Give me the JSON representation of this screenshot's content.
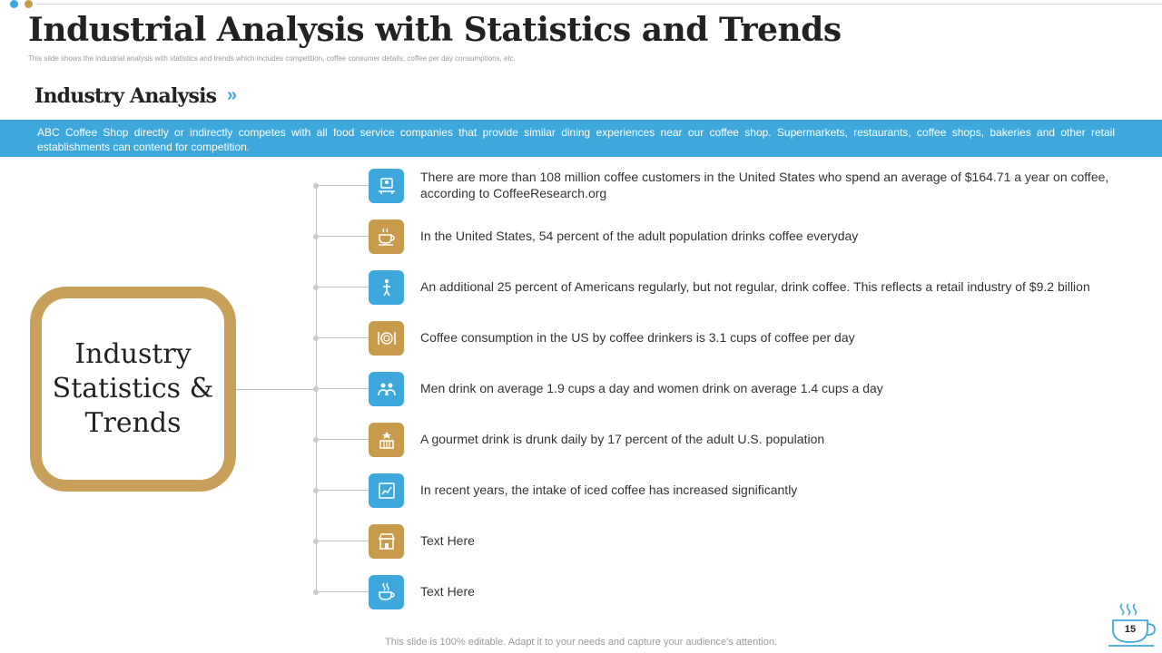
{
  "header": {
    "title": "Industrial Analysis with Statistics and Trends",
    "subtitle": "This slide shows the industrial analysis with statistics and trends which includes competition, coffee consumer details, coffee per day consumptions, etc."
  },
  "section": {
    "heading": "Industry Analysis",
    "chevron": "»"
  },
  "banner": {
    "text": "ABC Coffee Shop directly or indirectly competes with all food service companies that provide similar dining experiences near our coffee shop. Supermarkets, restaurants, coffee shops, bakeries and other retail establishments can contend for competition."
  },
  "stat_box": {
    "label": "Industry Statistics & Trends"
  },
  "items": [
    {
      "text": "There are more than 108 million coffee customers in the United States who spend an average of $164.71 a year on coffee, according to CoffeeResearch.org",
      "icon": "customer-desk-icon",
      "color": "#3ea8dd"
    },
    {
      "text": "In the United States, 54 percent of the adult population drinks coffee everyday",
      "icon": "coffee-cup-icon",
      "color": "#c79a4c"
    },
    {
      "text": "An additional 25 percent of Americans regularly, but not regular, drink coffee. This reflects a retail industry of $9.2 billion",
      "icon": "person-standing-icon",
      "color": "#3ea8dd"
    },
    {
      "text": "Coffee consumption in the US by coffee drinkers is 3.1 cups of coffee per day",
      "icon": "plate-cutlery-icon",
      "color": "#c79a4c"
    },
    {
      "text": "Men drink on average 1.9 cups a day and women drink on average 1.4 cups a day",
      "icon": "people-group-icon",
      "color": "#3ea8dd"
    },
    {
      "text": "A gourmet drink is drunk daily by 17 percent of the adult U.S. population",
      "icon": "award-building-icon",
      "color": "#c79a4c"
    },
    {
      "text": "In recent years, the intake of iced coffee has increased significantly",
      "icon": "chart-frame-icon",
      "color": "#3ea8dd"
    },
    {
      "text": "Text Here",
      "icon": "shop-building-icon",
      "color": "#c79a4c"
    },
    {
      "text": "Text Here",
      "icon": "hot-drink-icon",
      "color": "#3ea8dd"
    }
  ],
  "footer": {
    "note": "This slide is 100% editable. Adapt it to your needs and capture your audience's attention.",
    "page_number": "15"
  },
  "colors": {
    "accent_blue": "#3ea8dd",
    "accent_gold": "#c79a4c",
    "box_border": "#c9a05a"
  }
}
